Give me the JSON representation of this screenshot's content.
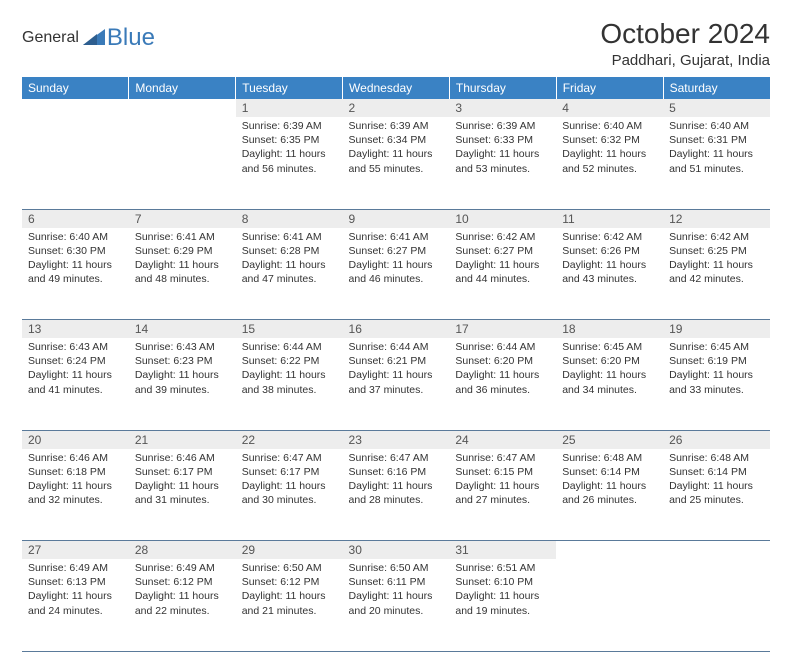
{
  "logo": {
    "text1": "General",
    "text2": "Blue"
  },
  "title": "October 2024",
  "location": "Paddhari, Gujarat, India",
  "colors": {
    "header_bg": "#3a82c4",
    "header_text": "#ffffff",
    "daynum_bg": "#ededed",
    "border": "#5a7a9a",
    "logo_gray": "#6b6b6b",
    "logo_blue": "#3a7ab8"
  },
  "weekdays": [
    "Sunday",
    "Monday",
    "Tuesday",
    "Wednesday",
    "Thursday",
    "Friday",
    "Saturday"
  ],
  "weeks": [
    {
      "nums": [
        "",
        "",
        "1",
        "2",
        "3",
        "4",
        "5"
      ],
      "cells": [
        null,
        null,
        {
          "sunrise": "Sunrise: 6:39 AM",
          "sunset": "Sunset: 6:35 PM",
          "daylight": "Daylight: 11 hours and 56 minutes."
        },
        {
          "sunrise": "Sunrise: 6:39 AM",
          "sunset": "Sunset: 6:34 PM",
          "daylight": "Daylight: 11 hours and 55 minutes."
        },
        {
          "sunrise": "Sunrise: 6:39 AM",
          "sunset": "Sunset: 6:33 PM",
          "daylight": "Daylight: 11 hours and 53 minutes."
        },
        {
          "sunrise": "Sunrise: 6:40 AM",
          "sunset": "Sunset: 6:32 PM",
          "daylight": "Daylight: 11 hours and 52 minutes."
        },
        {
          "sunrise": "Sunrise: 6:40 AM",
          "sunset": "Sunset: 6:31 PM",
          "daylight": "Daylight: 11 hours and 51 minutes."
        }
      ]
    },
    {
      "nums": [
        "6",
        "7",
        "8",
        "9",
        "10",
        "11",
        "12"
      ],
      "cells": [
        {
          "sunrise": "Sunrise: 6:40 AM",
          "sunset": "Sunset: 6:30 PM",
          "daylight": "Daylight: 11 hours and 49 minutes."
        },
        {
          "sunrise": "Sunrise: 6:41 AM",
          "sunset": "Sunset: 6:29 PM",
          "daylight": "Daylight: 11 hours and 48 minutes."
        },
        {
          "sunrise": "Sunrise: 6:41 AM",
          "sunset": "Sunset: 6:28 PM",
          "daylight": "Daylight: 11 hours and 47 minutes."
        },
        {
          "sunrise": "Sunrise: 6:41 AM",
          "sunset": "Sunset: 6:27 PM",
          "daylight": "Daylight: 11 hours and 46 minutes."
        },
        {
          "sunrise": "Sunrise: 6:42 AM",
          "sunset": "Sunset: 6:27 PM",
          "daylight": "Daylight: 11 hours and 44 minutes."
        },
        {
          "sunrise": "Sunrise: 6:42 AM",
          "sunset": "Sunset: 6:26 PM",
          "daylight": "Daylight: 11 hours and 43 minutes."
        },
        {
          "sunrise": "Sunrise: 6:42 AM",
          "sunset": "Sunset: 6:25 PM",
          "daylight": "Daylight: 11 hours and 42 minutes."
        }
      ]
    },
    {
      "nums": [
        "13",
        "14",
        "15",
        "16",
        "17",
        "18",
        "19"
      ],
      "cells": [
        {
          "sunrise": "Sunrise: 6:43 AM",
          "sunset": "Sunset: 6:24 PM",
          "daylight": "Daylight: 11 hours and 41 minutes."
        },
        {
          "sunrise": "Sunrise: 6:43 AM",
          "sunset": "Sunset: 6:23 PM",
          "daylight": "Daylight: 11 hours and 39 minutes."
        },
        {
          "sunrise": "Sunrise: 6:44 AM",
          "sunset": "Sunset: 6:22 PM",
          "daylight": "Daylight: 11 hours and 38 minutes."
        },
        {
          "sunrise": "Sunrise: 6:44 AM",
          "sunset": "Sunset: 6:21 PM",
          "daylight": "Daylight: 11 hours and 37 minutes."
        },
        {
          "sunrise": "Sunrise: 6:44 AM",
          "sunset": "Sunset: 6:20 PM",
          "daylight": "Daylight: 11 hours and 36 minutes."
        },
        {
          "sunrise": "Sunrise: 6:45 AM",
          "sunset": "Sunset: 6:20 PM",
          "daylight": "Daylight: 11 hours and 34 minutes."
        },
        {
          "sunrise": "Sunrise: 6:45 AM",
          "sunset": "Sunset: 6:19 PM",
          "daylight": "Daylight: 11 hours and 33 minutes."
        }
      ]
    },
    {
      "nums": [
        "20",
        "21",
        "22",
        "23",
        "24",
        "25",
        "26"
      ],
      "cells": [
        {
          "sunrise": "Sunrise: 6:46 AM",
          "sunset": "Sunset: 6:18 PM",
          "daylight": "Daylight: 11 hours and 32 minutes."
        },
        {
          "sunrise": "Sunrise: 6:46 AM",
          "sunset": "Sunset: 6:17 PM",
          "daylight": "Daylight: 11 hours and 31 minutes."
        },
        {
          "sunrise": "Sunrise: 6:47 AM",
          "sunset": "Sunset: 6:17 PM",
          "daylight": "Daylight: 11 hours and 30 minutes."
        },
        {
          "sunrise": "Sunrise: 6:47 AM",
          "sunset": "Sunset: 6:16 PM",
          "daylight": "Daylight: 11 hours and 28 minutes."
        },
        {
          "sunrise": "Sunrise: 6:47 AM",
          "sunset": "Sunset: 6:15 PM",
          "daylight": "Daylight: 11 hours and 27 minutes."
        },
        {
          "sunrise": "Sunrise: 6:48 AM",
          "sunset": "Sunset: 6:14 PM",
          "daylight": "Daylight: 11 hours and 26 minutes."
        },
        {
          "sunrise": "Sunrise: 6:48 AM",
          "sunset": "Sunset: 6:14 PM",
          "daylight": "Daylight: 11 hours and 25 minutes."
        }
      ]
    },
    {
      "nums": [
        "27",
        "28",
        "29",
        "30",
        "31",
        "",
        ""
      ],
      "cells": [
        {
          "sunrise": "Sunrise: 6:49 AM",
          "sunset": "Sunset: 6:13 PM",
          "daylight": "Daylight: 11 hours and 24 minutes."
        },
        {
          "sunrise": "Sunrise: 6:49 AM",
          "sunset": "Sunset: 6:12 PM",
          "daylight": "Daylight: 11 hours and 22 minutes."
        },
        {
          "sunrise": "Sunrise: 6:50 AM",
          "sunset": "Sunset: 6:12 PM",
          "daylight": "Daylight: 11 hours and 21 minutes."
        },
        {
          "sunrise": "Sunrise: 6:50 AM",
          "sunset": "Sunset: 6:11 PM",
          "daylight": "Daylight: 11 hours and 20 minutes."
        },
        {
          "sunrise": "Sunrise: 6:51 AM",
          "sunset": "Sunset: 6:10 PM",
          "daylight": "Daylight: 11 hours and 19 minutes."
        },
        null,
        null
      ]
    }
  ]
}
